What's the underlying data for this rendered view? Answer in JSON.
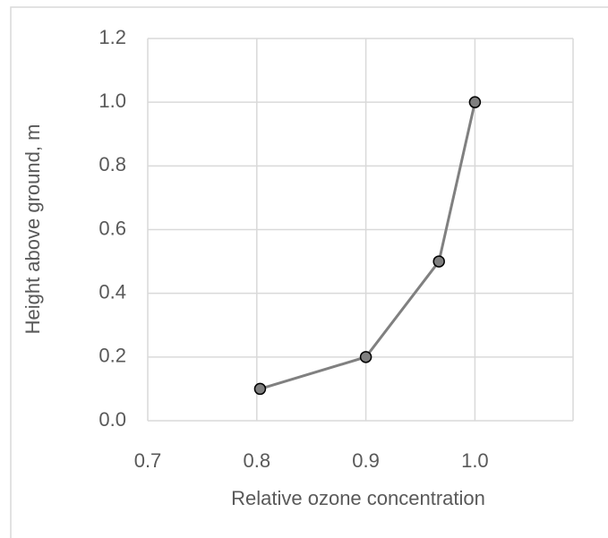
{
  "chart_data": {
    "type": "line",
    "x_label": "Relative ozone concentration",
    "y_label": "Height above ground, m",
    "series": [
      {
        "x": [
          0.803,
          0.9,
          0.967,
          1.0
        ],
        "values": [
          0.1,
          0.2,
          0.5,
          1.0
        ],
        "color": "#808080",
        "marker_color": "#7f7f7f"
      }
    ],
    "xlim": [
      0.7,
      1.09
    ],
    "xticks": [
      0.7,
      0.8,
      0.9,
      {
        "value": 1,
        "label": "1.0"
      }
    ],
    "ylim": [
      0,
      1.2
    ],
    "yticks": [
      {
        "value": 0,
        "label": "0.0"
      },
      0.2,
      0.4,
      0.6,
      0.8,
      {
        "value": 1,
        "label": "1.0"
      },
      1.2
    ],
    "grid": true
  }
}
